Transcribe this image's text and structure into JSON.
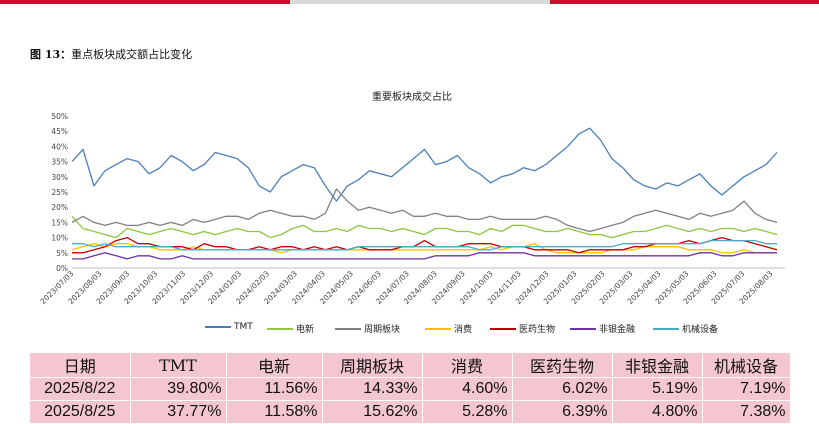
{
  "figure_label": {
    "num": "图 13：",
    "title": "重点板块成交额占比变化"
  },
  "chart_data": {
    "type": "line",
    "title": "重要板块成交占比",
    "y_ticks": [
      "0%",
      "5%",
      "10%",
      "15%",
      "20%",
      "25%",
      "30%",
      "35%",
      "40%",
      "45%",
      "50%"
    ],
    "ylim": [
      0,
      50
    ],
    "x_ticks": [
      "2023/07/03",
      "2023/08/03",
      "2023/09/03",
      "2023/10/03",
      "2023/11/03",
      "2023/12/03",
      "2024/01/03",
      "2024/02/03",
      "2024/03/03",
      "2024/04/03",
      "2024/05/03",
      "2024/06/03",
      "2024/07/03",
      "2024/08/03",
      "2024/09/03",
      "2024/10/03",
      "2024/11/03",
      "2024/12/03",
      "2025/01/03",
      "2025/02/03",
      "2025/03/03",
      "2025/04/03",
      "2025/05/03",
      "2025/06/03",
      "2025/07/03",
      "2025/08/03"
    ],
    "legend_position": "bottom",
    "grid": false,
    "series": [
      {
        "name": "TMT",
        "color": "#4a7ebb",
        "values": [
          35,
          39,
          27,
          32,
          34,
          36,
          35,
          31,
          33,
          37,
          35,
          32,
          34,
          38,
          37,
          36,
          33,
          27,
          25,
          30,
          32,
          34,
          33,
          27,
          22,
          27,
          29,
          32,
          31,
          30,
          33,
          36,
          39,
          34,
          35,
          37,
          33,
          31,
          28,
          30,
          31,
          33,
          32,
          34,
          37,
          40,
          44,
          46,
          42,
          36,
          33,
          29,
          27,
          26,
          28,
          27,
          29,
          31,
          27,
          24,
          27,
          30,
          32,
          34,
          38
        ]
      },
      {
        "name": "电新",
        "color": "#8dc63f",
        "values": [
          17,
          13,
          12,
          11,
          10,
          13,
          12,
          11,
          12,
          13,
          12,
          11,
          12,
          11,
          12,
          13,
          12,
          12,
          10,
          11,
          13,
          14,
          12,
          12,
          13,
          12,
          14,
          13,
          13,
          12,
          13,
          12,
          11,
          13,
          13,
          12,
          12,
          11,
          13,
          12,
          14,
          14,
          13,
          12,
          12,
          13,
          12,
          11,
          11,
          10,
          11,
          12,
          12,
          13,
          14,
          13,
          12,
          13,
          12,
          13,
          13,
          12,
          13,
          12,
          11
        ]
      },
      {
        "name": "周期板块",
        "color": "#808080",
        "values": [
          15,
          17,
          15,
          14,
          15,
          14,
          14,
          15,
          14,
          15,
          14,
          16,
          15,
          16,
          17,
          17,
          16,
          18,
          19,
          18,
          17,
          17,
          16,
          18,
          26,
          22,
          19,
          20,
          19,
          18,
          19,
          17,
          17,
          18,
          17,
          17,
          16,
          16,
          17,
          16,
          16,
          16,
          16,
          17,
          16,
          14,
          13,
          12,
          13,
          14,
          15,
          17,
          18,
          19,
          18,
          17,
          16,
          18,
          17,
          18,
          19,
          22,
          18,
          16,
          15
        ]
      },
      {
        "name": "消费",
        "color": "#ffc000",
        "values": [
          6,
          7,
          8,
          7,
          8,
          8,
          7,
          7,
          6,
          6,
          6,
          7,
          6,
          6,
          6,
          6,
          6,
          6,
          6,
          5,
          6,
          6,
          6,
          6,
          6,
          6,
          6,
          6,
          6,
          6,
          6,
          6,
          6,
          6,
          6,
          6,
          6,
          6,
          7,
          6,
          7,
          7,
          8,
          6,
          5,
          5,
          5,
          5,
          5,
          6,
          6,
          6,
          7,
          7,
          7,
          7,
          6,
          6,
          6,
          5,
          5,
          6,
          5,
          5,
          5
        ]
      },
      {
        "name": "医药生物",
        "color": "#c00000",
        "values": [
          5,
          5,
          6,
          7,
          9,
          10,
          8,
          8,
          7,
          7,
          7,
          6,
          8,
          7,
          7,
          6,
          6,
          7,
          6,
          7,
          7,
          6,
          7,
          6,
          7,
          6,
          7,
          6,
          6,
          6,
          7,
          7,
          9,
          7,
          7,
          7,
          8,
          8,
          8,
          7,
          7,
          7,
          6,
          6,
          6,
          6,
          5,
          6,
          6,
          6,
          6,
          7,
          7,
          8,
          8,
          8,
          9,
          8,
          9,
          10,
          9,
          9,
          8,
          7,
          6
        ]
      },
      {
        "name": "非银金融",
        "color": "#7030a0",
        "values": [
          3,
          3,
          4,
          5,
          4,
          3,
          4,
          4,
          3,
          3,
          4,
          3,
          3,
          3,
          3,
          3,
          3,
          3,
          3,
          3,
          3,
          3,
          3,
          3,
          3,
          3,
          3,
          3,
          3,
          3,
          3,
          3,
          3,
          4,
          4,
          4,
          4,
          5,
          5,
          5,
          5,
          5,
          4,
          4,
          4,
          4,
          4,
          4,
          4,
          4,
          4,
          4,
          4,
          4,
          4,
          4,
          4,
          5,
          5,
          4,
          4,
          5,
          5,
          5,
          5
        ]
      },
      {
        "name": "机械设备",
        "color": "#4bacc6",
        "values": [
          8,
          8,
          7,
          8,
          7,
          7,
          7,
          7,
          7,
          7,
          6,
          6,
          6,
          6,
          6,
          6,
          6,
          6,
          6,
          6,
          6,
          6,
          6,
          6,
          6,
          6,
          7,
          7,
          7,
          7,
          7,
          7,
          7,
          7,
          7,
          7,
          7,
          6,
          6,
          7,
          7,
          7,
          7,
          7,
          7,
          7,
          7,
          7,
          7,
          7,
          8,
          8,
          8,
          8,
          8,
          8,
          8,
          8,
          9,
          9,
          9,
          9,
          9,
          8,
          8
        ]
      }
    ]
  },
  "table": {
    "headers": [
      "日期",
      "TMT",
      "电新",
      "周期板块",
      "消费",
      "医药生物",
      "非银金融",
      "机械设备"
    ],
    "rows": [
      [
        "2025/8/22",
        "39.80%",
        "11.56%",
        "14.33%",
        "4.60%",
        "6.02%",
        "5.19%",
        "7.19%"
      ],
      [
        "2025/8/25",
        "37.77%",
        "11.58%",
        "15.62%",
        "5.28%",
        "6.39%",
        "4.80%",
        "7.38%"
      ]
    ]
  }
}
